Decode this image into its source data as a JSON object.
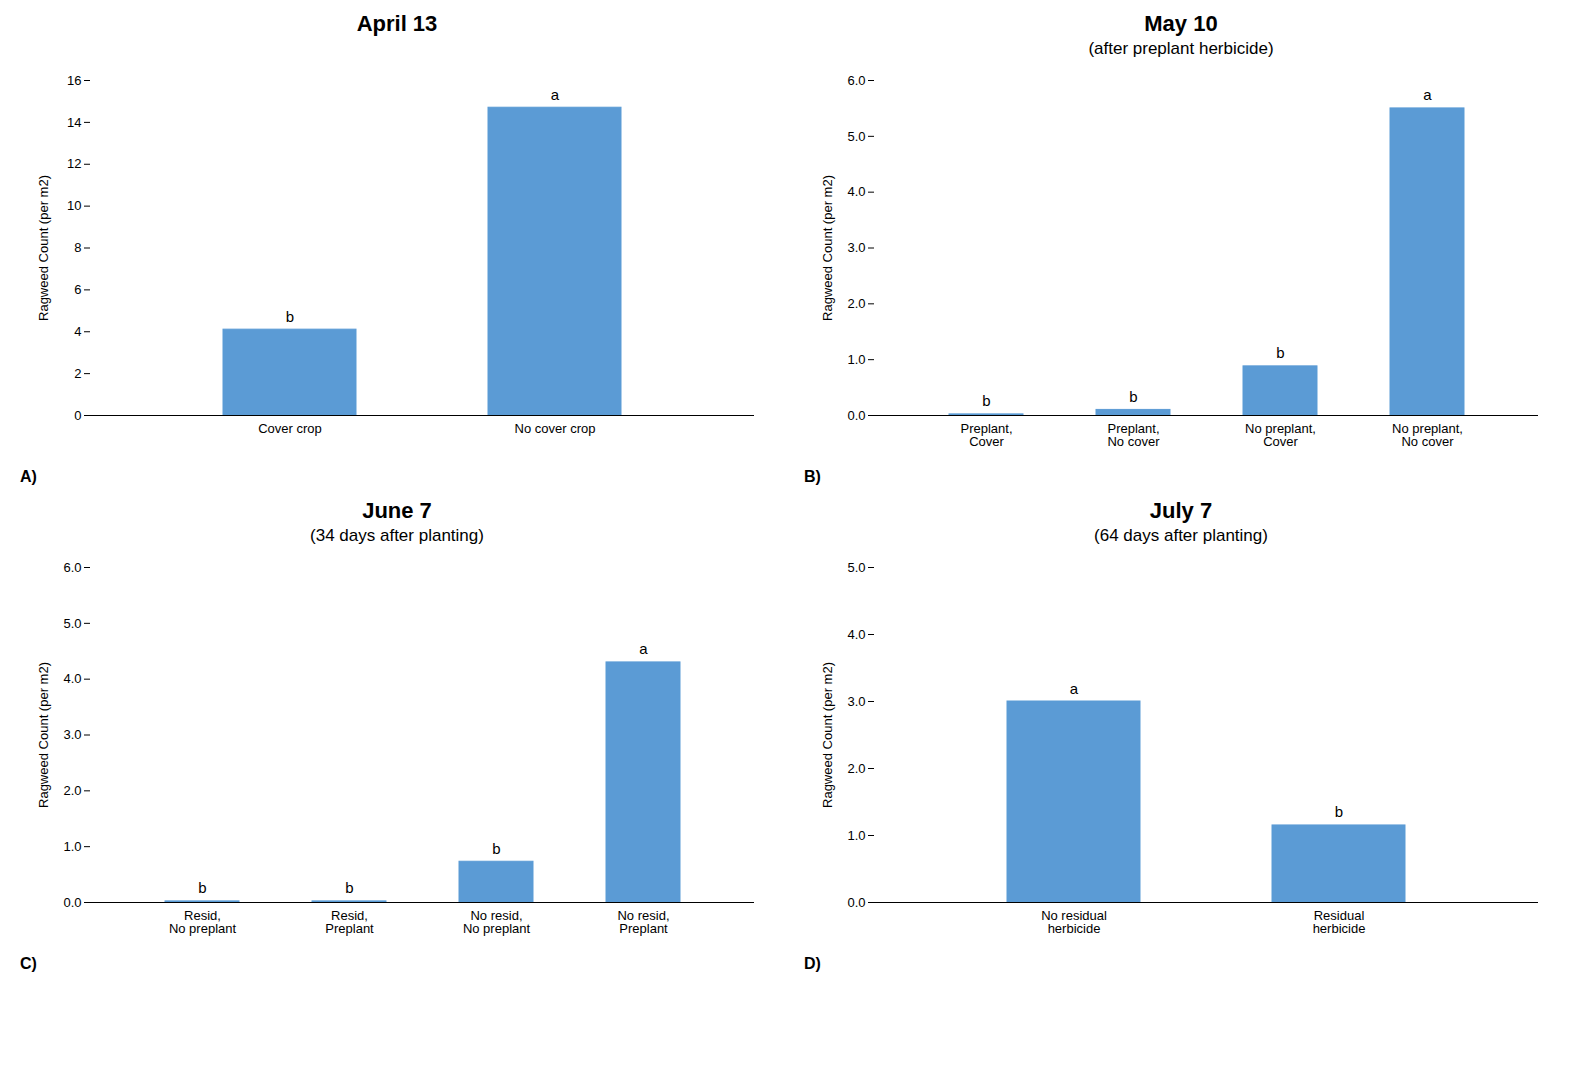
{
  "chart_data": [
    {
      "type": "bar",
      "title": "April 13",
      "label": "A)",
      "categories": [
        "Cover crop",
        "No cover crop"
      ],
      "values": [
        4.1,
        14.7
      ],
      "annotations": [
        "b",
        "a"
      ],
      "ylim": [
        0,
        16
      ],
      "yticks": [
        0,
        2,
        4,
        6,
        8,
        10,
        12,
        14,
        16
      ],
      "ylabel": "Ragweed Count (per m2)",
      "color": "#5b9bd5",
      "grid": false
    },
    {
      "type": "bar",
      "title": "May 10",
      "subtitle": "(after preplant herbicide)",
      "label": "B)",
      "categories": [
        "Preplant,\nCover",
        "Preplant,\nNo cover",
        "No preplant,\nCover",
        "No preplant,\nNo cover"
      ],
      "values": [
        0.02,
        0.1,
        0.88,
        5.5
      ],
      "annotations": [
        "b",
        "b",
        "b",
        "a"
      ],
      "ylim": [
        0,
        6
      ],
      "yticks": [
        0,
        1,
        2,
        3,
        4,
        5,
        6
      ],
      "ylabel": "Ragweed Count (per m2)",
      "color": "#5b9bd5",
      "grid": false
    },
    {
      "type": "bar",
      "title": "June 7",
      "subtitle": "(34 days after planting)",
      "label": "C)",
      "categories": [
        "Resid,\nNo preplant",
        "Resid,\nPreplant",
        "No resid,\nNo preplant",
        "No resid,\nPreplant"
      ],
      "values": [
        0.02,
        0.02,
        0.73,
        4.3
      ],
      "annotations": [
        "b",
        "b",
        "b",
        "a"
      ],
      "ylim": [
        0,
        6
      ],
      "yticks": [
        0,
        1,
        2,
        3,
        4,
        5,
        6
      ],
      "ylabel": "Ragweed Count (per m2)",
      "color": "#5b9bd5",
      "grid": false
    },
    {
      "type": "bar",
      "title": "July 7",
      "subtitle": "(64 days after planting)",
      "label": "D)",
      "categories": [
        "No residual\nherbicide",
        "Residual\nherbicide"
      ],
      "values": [
        3.0,
        1.15
      ],
      "annotations": [
        "a",
        "b"
      ],
      "ylim": [
        0,
        5
      ],
      "yticks": [
        0,
        1,
        2,
        3,
        4,
        5
      ],
      "ylabel": "Ragweed Count (per m2)",
      "color": "#5b9bd5",
      "grid": false
    }
  ]
}
